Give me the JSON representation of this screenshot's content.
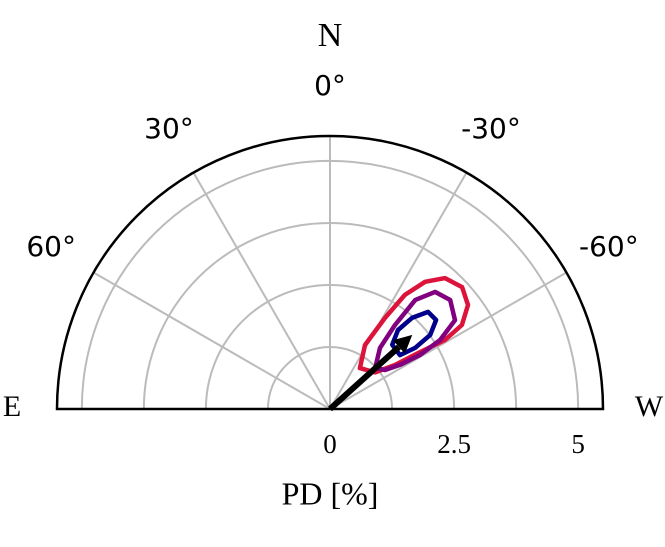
{
  "chart_data": {
    "type": "polar-contour",
    "north_label": "N",
    "east_label": "E",
    "west_label": "W",
    "r_label": "PD [%]",
    "rlim": [
      0,
      5.5
    ],
    "rticks": [
      0,
      2.5,
      5
    ],
    "rgrid": [
      1.25,
      2.5,
      3.75,
      5
    ],
    "thetalim": [
      -90,
      90
    ],
    "thetaticks": [
      {
        "value": -60,
        "label": "-60°"
      },
      {
        "value": -30,
        "label": "-30°"
      },
      {
        "value": 0,
        "label": "0°"
      },
      {
        "value": 30,
        "label": "30°"
      },
      {
        "value": 60,
        "label": "60°"
      }
    ],
    "grid": true,
    "series": [
      {
        "color": "#dc143c",
        "theta": [
          -36.2,
          -28.7,
          -31.1,
          -33.3,
          -36.8,
          -41.3,
          -47.3,
          -53.0,
          -57.5,
          -59.0,
          -57.7,
          -55.9,
          -50.9
        ],
        "r": [
          1.02,
          1.47,
          2.14,
          2.75,
          3.2,
          3.51,
          3.62,
          3.48,
          3.15,
          2.7,
          2.15,
          1.58,
          1.17
        ]
      },
      {
        "color": "#800080",
        "theta": [
          -47.7,
          -39.3,
          -37.7,
          -38.0,
          -41.9,
          -47.8,
          -54.6,
          -57.9,
          -59.0,
          -57.8,
          -54.7
        ],
        "r": [
          1.23,
          1.59,
          2.14,
          2.79,
          3.17,
          3.27,
          3.09,
          2.62,
          2.12,
          1.67,
          1.36
        ]
      },
      {
        "color": "#00008b",
        "theta": [
          -44.1,
          -40.7,
          -42.0,
          -45.3,
          -50.0,
          -53.5,
          -54.3,
          -52.4
        ],
        "r": [
          1.8,
          2.1,
          2.47,
          2.78,
          2.79,
          2.51,
          2.11,
          1.78
        ]
      }
    ],
    "arrow": {
      "theta": -48,
      "r": 2.23,
      "color": "#000000"
    }
  }
}
